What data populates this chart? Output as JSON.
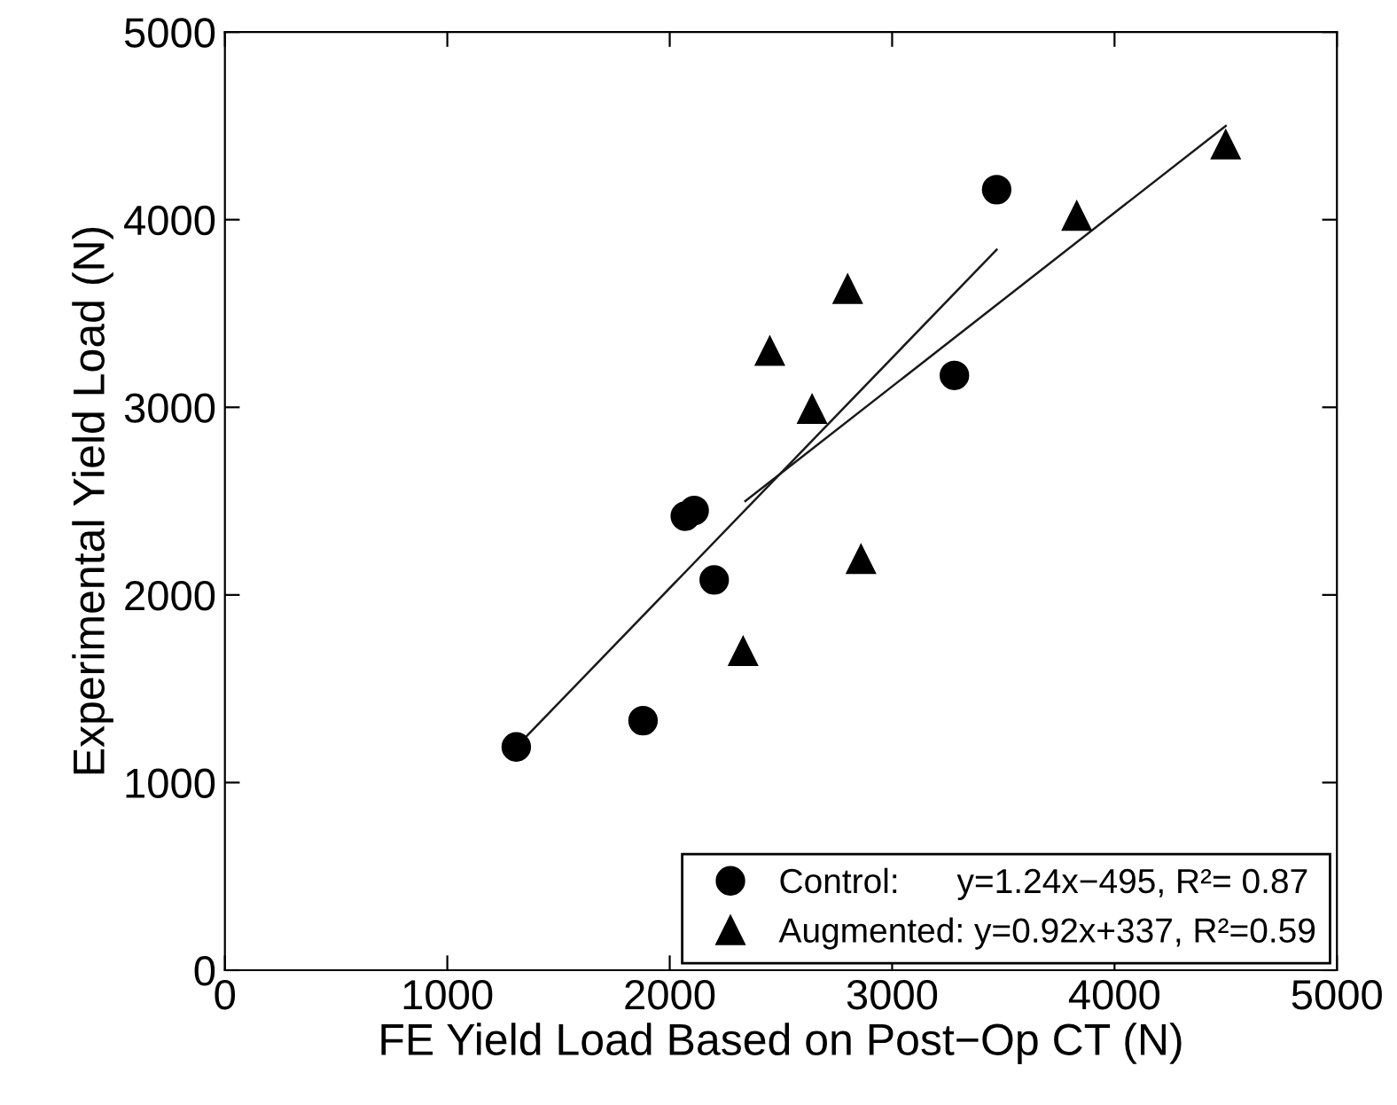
{
  "chart_data": {
    "type": "scatter",
    "xlabel": "FE Yield Load Based on Post−Op CT (N)",
    "ylabel": "Experimental Yield Load (N)",
    "xlim": [
      0,
      5000
    ],
    "ylim": [
      0,
      5000
    ],
    "xticks": [
      0,
      1000,
      2000,
      3000,
      4000,
      5000
    ],
    "yticks": [
      0,
      1000,
      2000,
      3000,
      4000,
      5000
    ],
    "grid": false,
    "legend": "bottom right",
    "series": [
      {
        "name": "Control:      y=1.24x−495, R²= 0.87",
        "color": "#000000",
        "marker": "circle",
        "x": [
          1310,
          1880,
          2200,
          2070,
          2110,
          3280,
          3470
        ],
        "values": [
          1190,
          1330,
          2080,
          2420,
          2450,
          3170,
          4160
        ]
      },
      {
        "name": "Augmented: y=0.92x+337, R²=0.59",
        "color": "#000000",
        "marker": "triangle",
        "x": [
          2800,
          2450,
          2640,
          2860,
          2330,
          3830,
          4500
        ],
        "values": [
          3630,
          3300,
          2990,
          2190,
          1700,
          4020,
          4400
        ]
      },
      {
        "type": "line",
        "color": "#1a1a1a",
        "x": [
          1310,
          3470
        ],
        "values": [
          1190,
          3840
        ]
      },
      {
        "type": "line",
        "color": "#1a1a1a",
        "x": [
          2340,
          4500
        ],
        "values": [
          2500,
          4500
        ]
      }
    ]
  }
}
